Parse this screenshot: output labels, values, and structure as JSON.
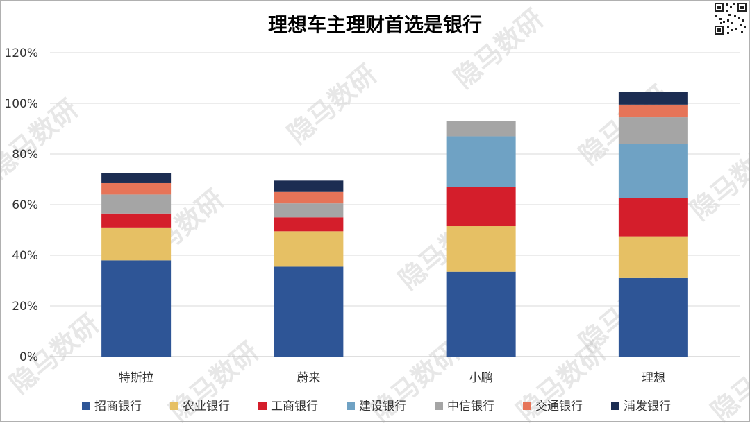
{
  "chart_data": {
    "type": "bar",
    "stacked": true,
    "title": "理想车主理财首选是银行",
    "categories": [
      "特斯拉",
      "蔚来",
      "小鹏",
      "理想"
    ],
    "ylim": [
      0,
      120
    ],
    "yticks": [
      "0%",
      "20%",
      "40%",
      "60%",
      "80%",
      "100%",
      "120%"
    ],
    "grid": true,
    "legend_position": "bottom",
    "series": [
      {
        "name": "招商银行",
        "color": "#2e5596",
        "values": [
          38,
          35.5,
          33.5,
          31
        ]
      },
      {
        "name": "农业银行",
        "color": "#e6c064",
        "values": [
          13,
          14,
          18,
          16.5
        ]
      },
      {
        "name": "工商银行",
        "color": "#d41e2b",
        "values": [
          5.5,
          5.5,
          15.5,
          15
        ]
      },
      {
        "name": "建设银行",
        "color": "#6fa2c4",
        "values": [
          0,
          0,
          20,
          21.5
        ]
      },
      {
        "name": "中信银行",
        "color": "#a5a5a5",
        "values": [
          7.5,
          5.5,
          6,
          10.5
        ]
      },
      {
        "name": "交通银行",
        "color": "#e67458",
        "values": [
          4.5,
          4.5,
          0,
          5
        ]
      },
      {
        "name": "浦发银行",
        "color": "#1c2d52",
        "values": [
          4,
          4.5,
          0,
          5
        ]
      }
    ]
  },
  "watermark": "隐马数研"
}
